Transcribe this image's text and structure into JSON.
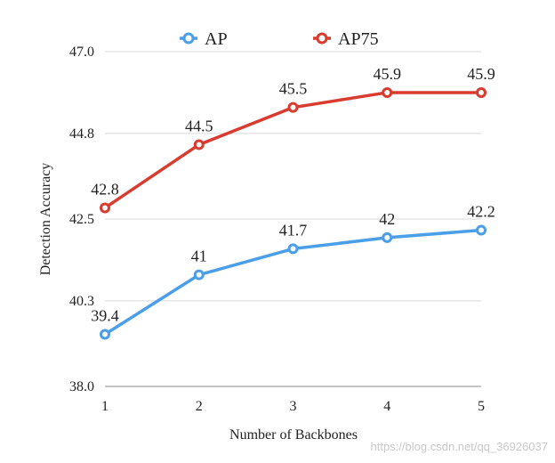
{
  "chart_data": {
    "type": "line",
    "title": "",
    "xlabel": "Number of Backbones",
    "ylabel": "Detection  Accuracy",
    "x": [
      1,
      2,
      3,
      4,
      5
    ],
    "x_tick_labels": [
      "1",
      "2",
      "3",
      "4",
      "5"
    ],
    "y_ticks": [
      38.0,
      40.3,
      42.5,
      44.8,
      47.0
    ],
    "y_tick_labels": [
      "38.0",
      "40.3",
      "42.5",
      "44.8",
      "47.0"
    ],
    "ylim": [
      38.0,
      47.0
    ],
    "grid": "horizontal",
    "legend_position": "top",
    "series": [
      {
        "name": "AP",
        "color": "#4a9fe8",
        "values": [
          39.4,
          41,
          41.7,
          42,
          42.2
        ],
        "labels": [
          "39.4",
          "41",
          "41.7",
          "42",
          "42.2"
        ]
      },
      {
        "name": "AP75",
        "color": "#d93c2f",
        "values": [
          42.8,
          44.5,
          45.5,
          45.9,
          45.9
        ],
        "labels": [
          "42.8",
          "44.5",
          "45.5",
          "45.9",
          "45.9"
        ]
      }
    ]
  },
  "watermark": "https://blog.csdn.net/qq_36926037"
}
